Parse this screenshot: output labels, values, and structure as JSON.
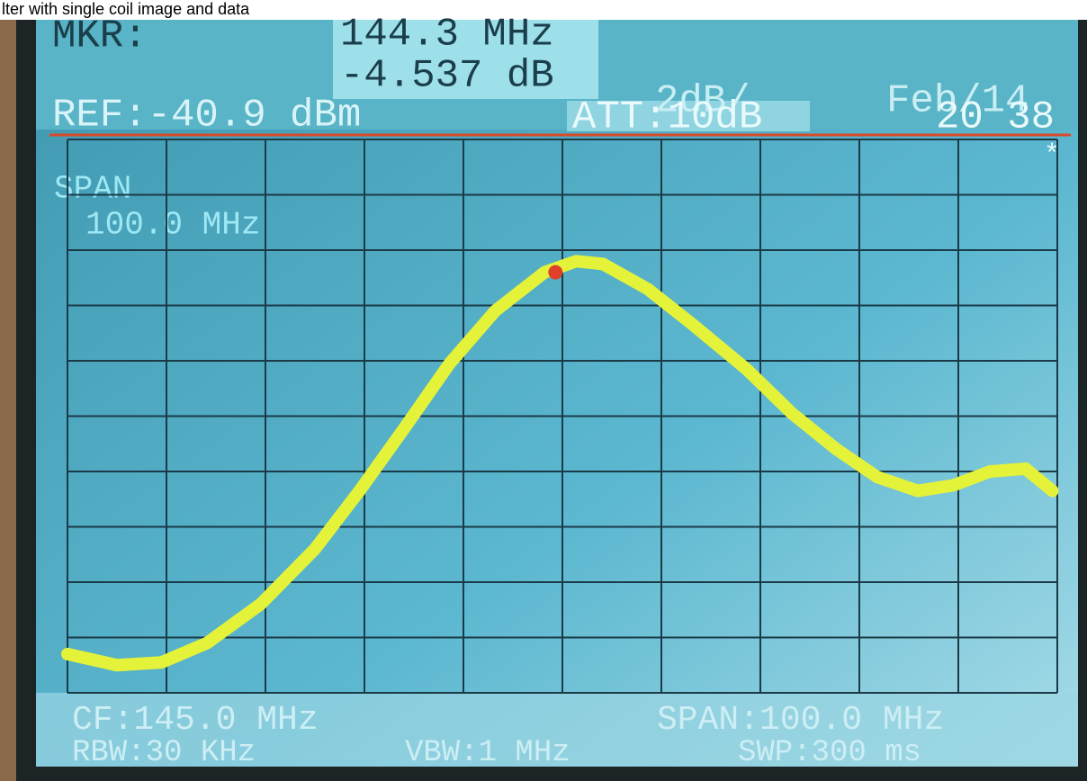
{
  "header": {
    "caption": "lter with single coil image and data"
  },
  "screen": {
    "mkr_label": "MKR:",
    "mkr_freq": "144.3 MHz",
    "mkr_level": "-4.537 dB",
    "scale": "2dB/",
    "date": "Feb/14",
    "ref": "REF:-40.9 dBm",
    "att": "ATT:10dB",
    "time": "20 38",
    "span_label": "SPAN",
    "span_value": "100.0 MHz",
    "star": "*",
    "cf": "CF:145.0 MHz",
    "span": "SPAN:100.0 MHz",
    "rbw": "RBW:30 KHz",
    "vbw": "VBW:1 MHz",
    "swp": "SWP:300 ms"
  },
  "chart_data": {
    "type": "line",
    "x": [
      95,
      100,
      104.5,
      109.1,
      114.5,
      120,
      124.5,
      129.1,
      133.6,
      138.2,
      143.2,
      146.4,
      149.1,
      153.6,
      158.2,
      163.6,
      168.2,
      172.7,
      176.8,
      180.9,
      184.5,
      188.2,
      191.8,
      194.5
    ],
    "series": [
      {
        "color": "#e4f23a",
        "values": [
          -59.5,
          -59.9,
          -59.8,
          -59.1,
          -57.7,
          -55.7,
          -53.6,
          -51.3,
          -49.0,
          -47.1,
          -45.7,
          -45.3,
          -45.4,
          -46.3,
          -47.6,
          -49.2,
          -50.8,
          -52.1,
          -53.1,
          -53.6,
          -53.4,
          -52.9,
          -52.8,
          -53.6
        ]
      }
    ],
    "marker": {
      "x": 144.3,
      "y": -45.7,
      "color": "#e0402a"
    },
    "xlim": [
      95,
      195
    ],
    "ylim": [
      -60.9,
      -40.9
    ],
    "grid": true
  }
}
